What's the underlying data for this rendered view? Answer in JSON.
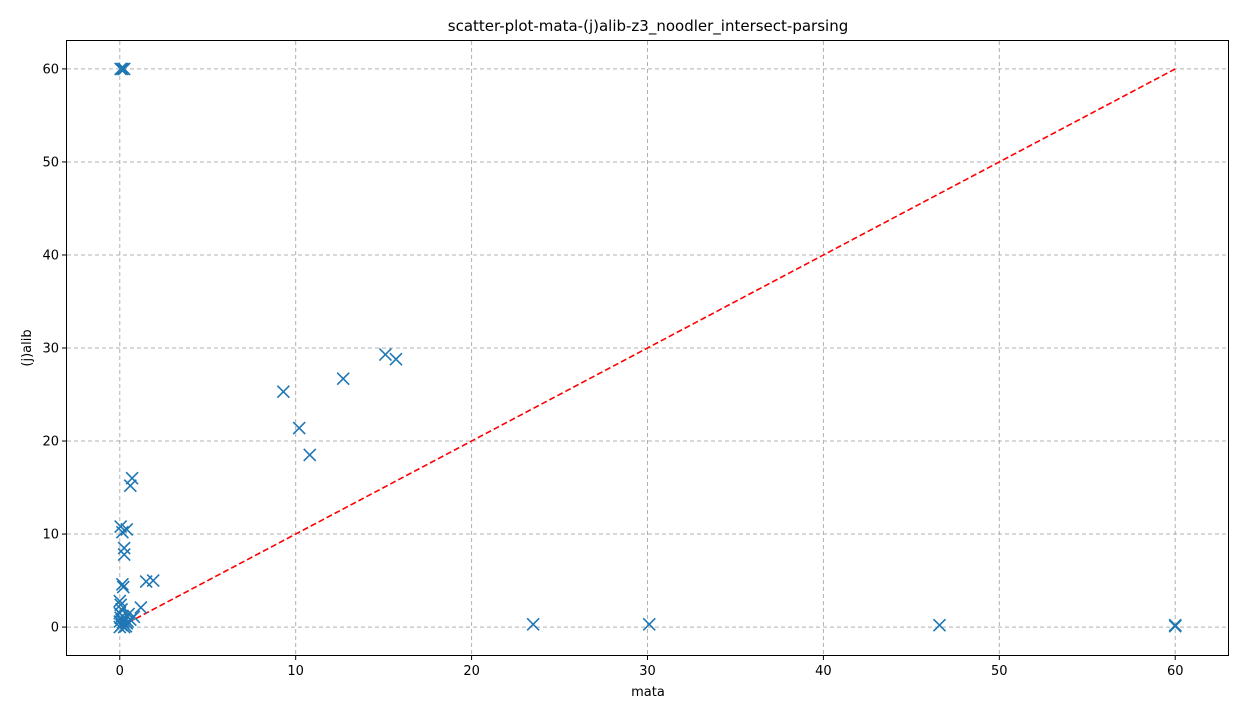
{
  "chart_data": {
    "type": "scatter",
    "title": "scatter-plot-mata-(j)alib-z3_noodler_intersect-parsing",
    "xlabel": "mata",
    "ylabel": "(j)alib",
    "xlim": [
      -3,
      63
    ],
    "ylim": [
      -3,
      63
    ],
    "xticks": [
      0,
      10,
      20,
      30,
      40,
      50,
      60
    ],
    "yticks": [
      0,
      10,
      20,
      30,
      40,
      50,
      60
    ],
    "grid": true,
    "marker": "x",
    "colors": {
      "points": "#1f77b4",
      "diagonal": "#ff0000"
    },
    "diagonal": {
      "from": [
        0,
        0
      ],
      "to": [
        60,
        60
      ],
      "style": "dashed"
    },
    "points": [
      {
        "x": 0.05,
        "y": 60
      },
      {
        "x": 0.15,
        "y": 60
      },
      {
        "x": 0.25,
        "y": 60
      },
      {
        "x": 9.3,
        "y": 25.3
      },
      {
        "x": 10.2,
        "y": 21.4
      },
      {
        "x": 10.8,
        "y": 18.5
      },
      {
        "x": 12.7,
        "y": 26.7
      },
      {
        "x": 15.1,
        "y": 29.3
      },
      {
        "x": 15.7,
        "y": 28.8
      },
      {
        "x": 0.6,
        "y": 15.2
      },
      {
        "x": 0.7,
        "y": 16.0
      },
      {
        "x": 0.05,
        "y": 10.8
      },
      {
        "x": 0.15,
        "y": 10.2
      },
      {
        "x": 0.4,
        "y": 10.5
      },
      {
        "x": 0.25,
        "y": 8.5
      },
      {
        "x": 0.25,
        "y": 7.8
      },
      {
        "x": 0.15,
        "y": 4.6
      },
      {
        "x": 0.2,
        "y": 4.3
      },
      {
        "x": 1.5,
        "y": 4.9
      },
      {
        "x": 1.9,
        "y": 5.0
      },
      {
        "x": 1.2,
        "y": 2.1
      },
      {
        "x": 0.0,
        "y": 2.8
      },
      {
        "x": 0.05,
        "y": 2.4
      },
      {
        "x": 0.1,
        "y": 1.9
      },
      {
        "x": 0.0,
        "y": 1.5
      },
      {
        "x": 0.15,
        "y": 1.2
      },
      {
        "x": 0.05,
        "y": 1.0
      },
      {
        "x": 0.3,
        "y": 0.9
      },
      {
        "x": 0.0,
        "y": 0.6
      },
      {
        "x": 0.2,
        "y": 0.5
      },
      {
        "x": 0.4,
        "y": 0.4
      },
      {
        "x": 0.6,
        "y": 0.8
      },
      {
        "x": 0.8,
        "y": 1.1
      },
      {
        "x": 0.5,
        "y": 1.4
      },
      {
        "x": 0.1,
        "y": 0.2
      },
      {
        "x": 0.0,
        "y": 0.0
      },
      {
        "x": 0.35,
        "y": 0.1
      },
      {
        "x": 0.25,
        "y": 0.0
      },
      {
        "x": 0.45,
        "y": 0.6
      },
      {
        "x": 23.5,
        "y": 0.3
      },
      {
        "x": 30.1,
        "y": 0.3
      },
      {
        "x": 46.6,
        "y": 0.2
      },
      {
        "x": 60,
        "y": 0.1
      },
      {
        "x": 60,
        "y": 0.2
      }
    ]
  }
}
